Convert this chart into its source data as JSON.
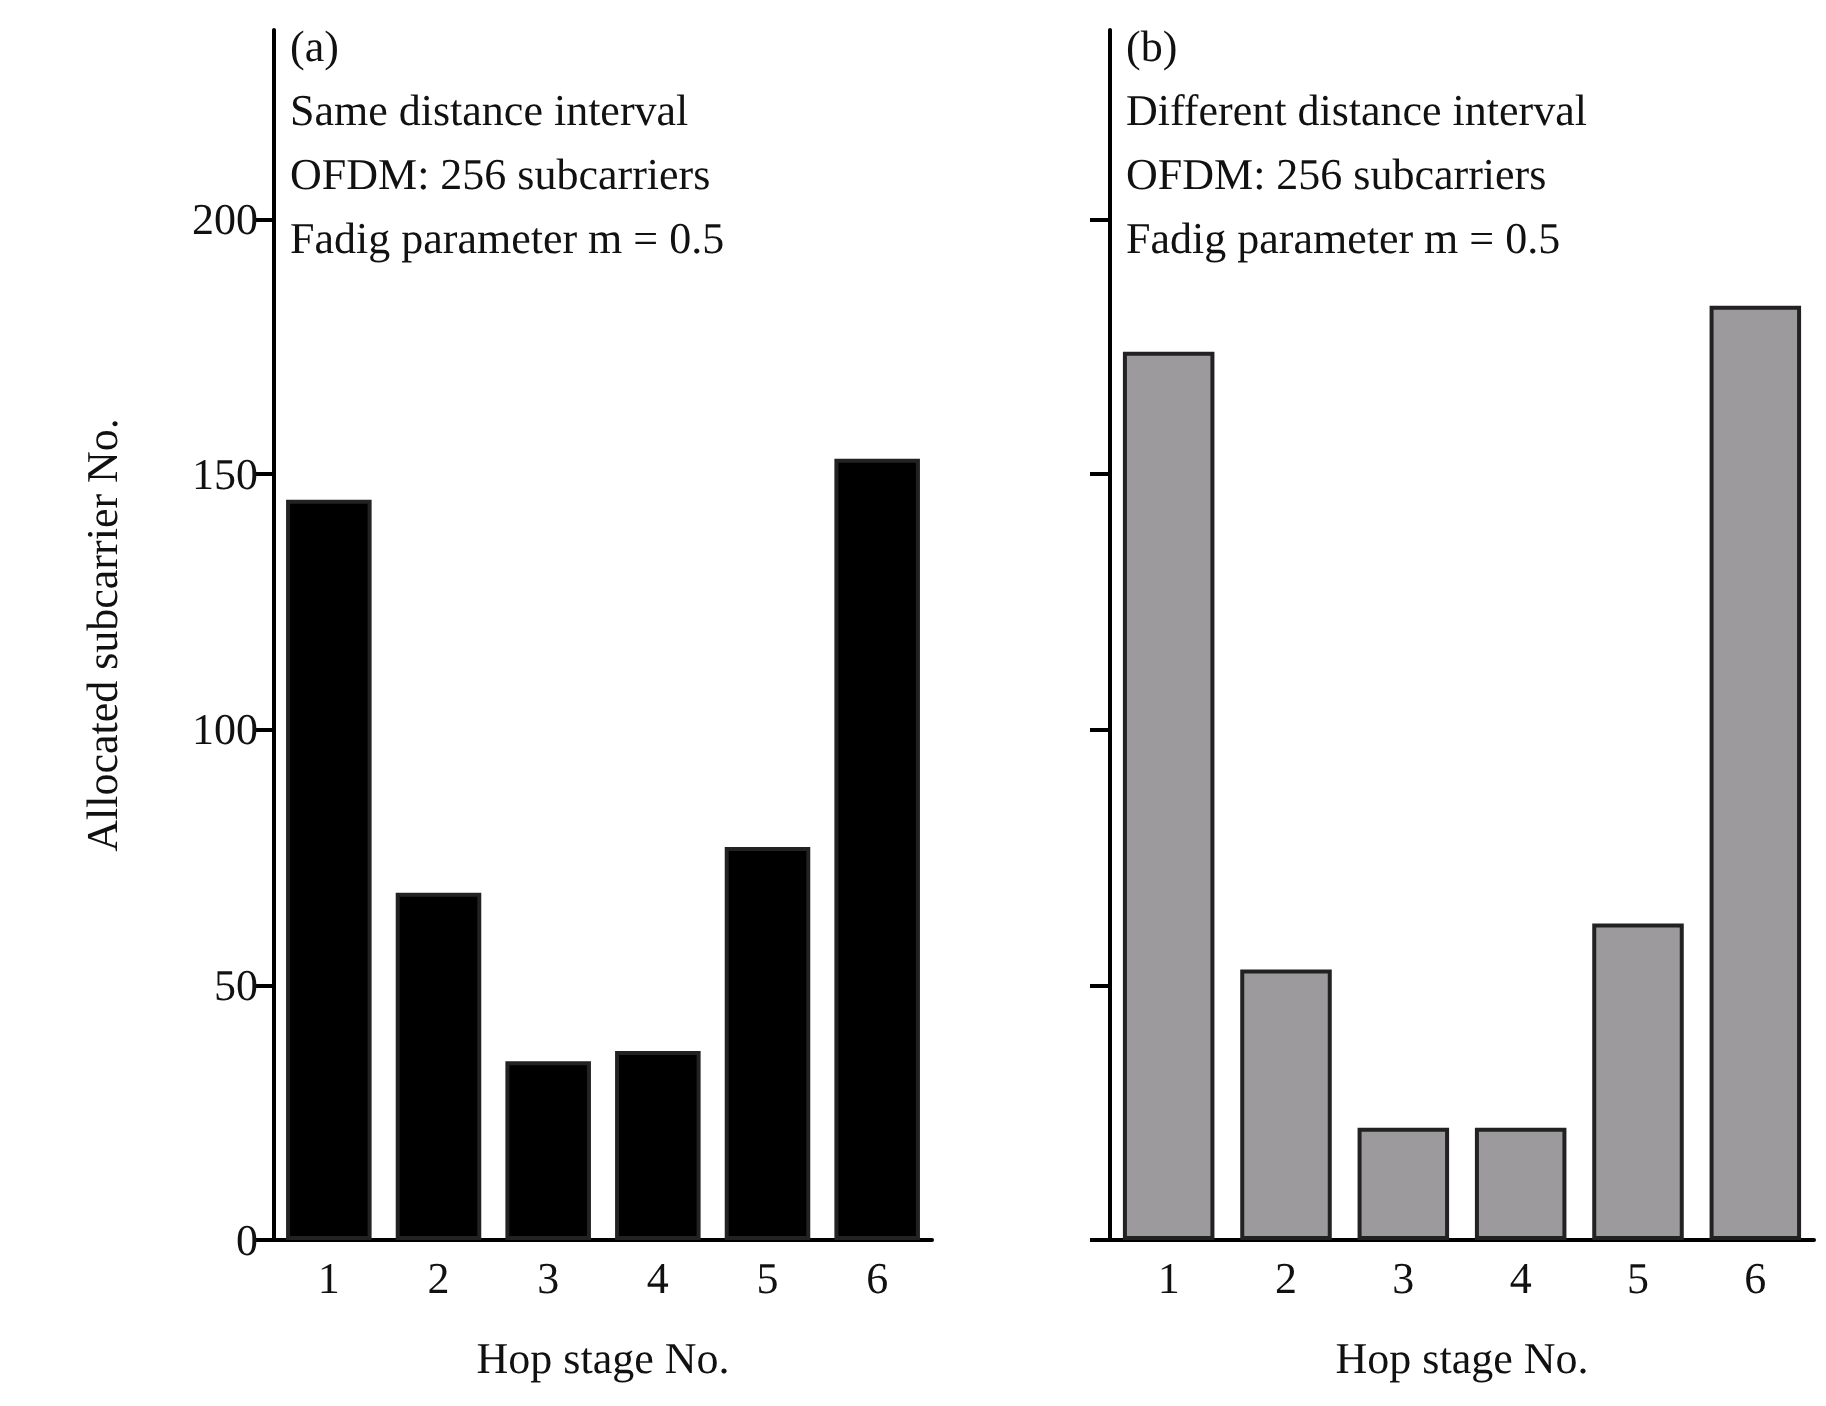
{
  "chart_data": [
    {
      "type": "bar",
      "xlabel": "Hop stage No.",
      "ylabel": "Allocated subcarrier No.",
      "annotations": [
        "(a)",
        "Same distance interval",
        "OFDM: 256 subcarriers",
        "Fadig parameter m = 0.5"
      ],
      "categories": [
        "1",
        "2",
        "3",
        "4",
        "5",
        "6"
      ],
      "series": [
        {
          "color": "#000000",
          "values": [
            145,
            68,
            35,
            37,
            77,
            153
          ]
        }
      ],
      "ylim": [
        0,
        237
      ],
      "yticks": [
        0,
        50,
        100,
        150,
        200
      ]
    },
    {
      "type": "bar",
      "xlabel": "Hop stage No.",
      "annotations": [
        "(b)",
        "Different distance interval",
        "OFDM: 256 subcarriers",
        "Fadig parameter m = 0.5"
      ],
      "categories": [
        "1",
        "2",
        "3",
        "4",
        "5",
        "6"
      ],
      "series": [
        {
          "color": "#9c9a9c",
          "values": [
            174,
            53,
            22,
            22,
            62,
            183
          ]
        }
      ],
      "ylim": [
        0,
        237
      ],
      "yticks": [
        0,
        50,
        100,
        150,
        200
      ],
      "tick_labels": "x"
    }
  ]
}
